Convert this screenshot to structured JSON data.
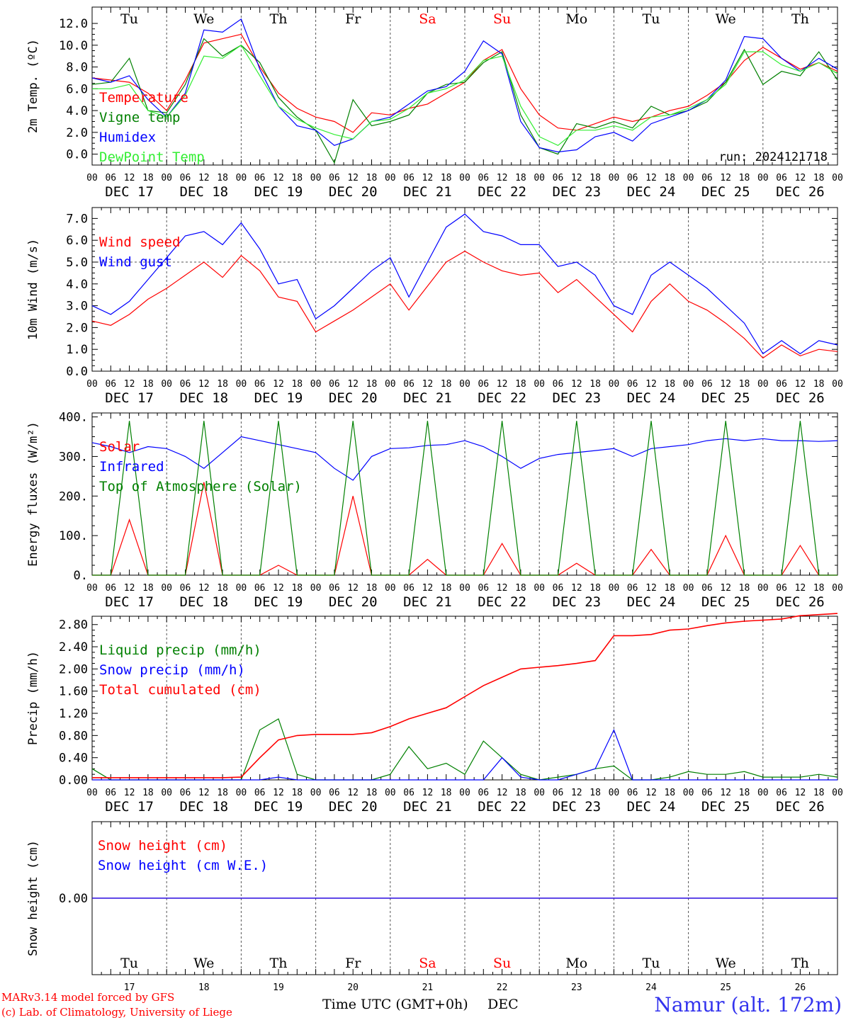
{
  "footer": {
    "model_line": "MARv3.14 model forced by GFS",
    "credit_line": "(c) Lab. of Climatology, University of Liege",
    "xlabel": "Time UTC (GMT+0h)",
    "month": "DEC",
    "station": "Namur (alt. 172m)"
  },
  "day_abbrevs": [
    "Tu",
    "We",
    "Th",
    "Fr",
    "Sa",
    "Su",
    "Mo",
    "Tu",
    "We",
    "Th"
  ],
  "weekend_indices": [
    4,
    5
  ],
  "day_numbers": [
    "17",
    "18",
    "19",
    "20",
    "21",
    "22",
    "23",
    "24",
    "25",
    "26"
  ],
  "date_labels": [
    "DEC 17",
    "DEC 18",
    "DEC 19",
    "DEC 20",
    "DEC 21",
    "DEC 22",
    "DEC 23",
    "DEC 24",
    "DEC 25",
    "DEC 26"
  ],
  "hour_ticks": [
    "00",
    "06",
    "12",
    "18"
  ],
  "final_hour": "00",
  "colors": {
    "red": "#ff0000",
    "green": "#008000",
    "blue": "#0000ff",
    "light_green": "#33ee33"
  },
  "chart_data": [
    {
      "type": "line",
      "ylabel": "2m Temp. (ºC)",
      "run_label": "run: 2024121718",
      "ylim": [
        -1.0,
        13.5
      ],
      "yticks": [
        "0.0",
        "2.0",
        "4.0",
        "6.0",
        "8.0",
        "10.0",
        "12.0"
      ],
      "ytick_values": [
        0,
        2,
        4,
        6,
        8,
        10,
        12
      ],
      "x_hours": [
        0,
        6,
        12,
        18,
        24,
        30,
        36,
        42,
        48,
        54,
        60,
        66,
        72,
        78,
        84,
        90,
        96,
        102,
        108,
        114,
        120,
        126,
        132,
        138,
        144,
        150,
        156,
        162,
        168,
        174,
        180,
        186,
        192,
        198,
        204,
        210,
        216,
        222,
        228,
        234,
        240
      ],
      "series": [
        {
          "name": "Temperature",
          "color": "#ff0000",
          "values": [
            7.0,
            6.8,
            6.6,
            5.6,
            4.0,
            6.8,
            10.2,
            10.6,
            11.0,
            8.0,
            5.6,
            4.2,
            3.4,
            3.0,
            2.0,
            3.8,
            3.6,
            4.2,
            4.6,
            5.6,
            6.6,
            8.6,
            9.6,
            6.0,
            3.6,
            2.4,
            2.2,
            2.8,
            3.4,
            3.0,
            3.4,
            4.0,
            4.4,
            5.4,
            6.6,
            8.6,
            9.8,
            8.8,
            7.8,
            8.4,
            7.6
          ]
        },
        {
          "name": "Vigne temp",
          "color": "#008000",
          "values": [
            6.4,
            6.6,
            8.8,
            4.0,
            3.8,
            6.4,
            10.6,
            9.0,
            10.0,
            8.4,
            5.2,
            3.4,
            2.2,
            -0.8,
            5.0,
            2.6,
            3.0,
            3.6,
            5.6,
            6.4,
            6.6,
            8.4,
            9.4,
            3.6,
            0.6,
            0.0,
            2.8,
            2.4,
            3.0,
            2.4,
            4.4,
            3.6,
            4.0,
            4.8,
            6.6,
            9.6,
            6.4,
            7.6,
            7.2,
            9.4,
            6.8
          ]
        },
        {
          "name": "Humidex",
          "color": "#0000ff",
          "values": [
            7.0,
            6.6,
            7.2,
            5.0,
            3.4,
            5.6,
            11.4,
            11.2,
            12.4,
            7.8,
            4.4,
            2.6,
            2.2,
            0.8,
            1.4,
            3.0,
            3.4,
            4.6,
            5.8,
            6.2,
            7.6,
            10.4,
            9.2,
            3.0,
            0.6,
            0.2,
            0.4,
            1.6,
            2.0,
            1.2,
            2.8,
            3.4,
            4.0,
            5.0,
            6.8,
            10.8,
            10.6,
            8.8,
            7.6,
            8.8,
            7.8
          ]
        },
        {
          "name": "DewPoint Temp",
          "color": "#33ee33",
          "values": [
            6.0,
            6.0,
            6.4,
            4.0,
            3.4,
            5.4,
            9.0,
            8.8,
            10.0,
            7.2,
            4.4,
            3.2,
            2.4,
            1.8,
            1.4,
            3.0,
            3.2,
            4.2,
            5.6,
            6.0,
            6.8,
            8.6,
            9.0,
            4.4,
            1.6,
            0.8,
            2.2,
            2.2,
            2.6,
            2.2,
            3.4,
            3.6,
            4.2,
            5.0,
            6.4,
            9.4,
            9.4,
            8.2,
            7.6,
            8.4,
            7.4
          ]
        }
      ]
    },
    {
      "type": "line",
      "ylabel": "10m Wind (m/s)",
      "ylim": [
        0,
        7.5
      ],
      "yticks": [
        "0.0",
        "1.0",
        "2.0",
        "3.0",
        "4.0",
        "5.0",
        "6.0",
        "7.0"
      ],
      "ytick_values": [
        0,
        1,
        2,
        3,
        4,
        5,
        6,
        7
      ],
      "reference_line": 5.0,
      "x_hours": [
        0,
        6,
        12,
        18,
        24,
        30,
        36,
        42,
        48,
        54,
        60,
        66,
        72,
        78,
        84,
        90,
        96,
        102,
        108,
        114,
        120,
        126,
        132,
        138,
        144,
        150,
        156,
        162,
        168,
        174,
        180,
        186,
        192,
        198,
        204,
        210,
        216,
        222,
        228,
        234,
        240
      ],
      "series": [
        {
          "name": "Wind speed",
          "color": "#ff0000",
          "values": [
            2.3,
            2.1,
            2.6,
            3.3,
            3.8,
            4.4,
            5.0,
            4.3,
            5.3,
            4.6,
            3.4,
            3.2,
            1.8,
            2.3,
            2.8,
            3.4,
            4.0,
            2.8,
            3.9,
            5.0,
            5.5,
            5.0,
            4.6,
            4.4,
            4.5,
            3.6,
            4.2,
            3.4,
            2.6,
            1.8,
            3.2,
            4.0,
            3.2,
            2.8,
            2.2,
            1.5,
            0.6,
            1.2,
            0.7,
            1.0,
            0.9
          ]
        },
        {
          "name": "Wind gust",
          "color": "#0000ff",
          "values": [
            3.0,
            2.6,
            3.2,
            4.2,
            5.2,
            6.2,
            6.4,
            5.8,
            6.8,
            5.6,
            4.0,
            4.2,
            2.4,
            3.0,
            3.8,
            4.6,
            5.2,
            3.4,
            5.0,
            6.6,
            7.2,
            6.4,
            6.2,
            5.8,
            5.8,
            4.8,
            5.0,
            4.4,
            3.0,
            2.6,
            4.4,
            5.0,
            4.4,
            3.8,
            3.0,
            2.2,
            0.8,
            1.4,
            0.8,
            1.4,
            1.2
          ]
        }
      ]
    },
    {
      "type": "line",
      "ylabel": "Energy fluxes (W/m²)",
      "ylim": [
        0,
        410
      ],
      "yticks": [
        "0.",
        "100.",
        "200.",
        "300.",
        "400."
      ],
      "ytick_values": [
        0,
        100,
        200,
        300,
        400
      ],
      "x_hours": [
        0,
        6,
        12,
        18,
        24,
        30,
        36,
        42,
        48,
        54,
        60,
        66,
        72,
        78,
        84,
        90,
        96,
        102,
        108,
        114,
        120,
        126,
        132,
        138,
        144,
        150,
        156,
        162,
        168,
        174,
        180,
        186,
        192,
        198,
        204,
        210,
        216,
        222,
        228,
        234,
        240
      ],
      "series": [
        {
          "name": "Solar",
          "color": "#ff0000",
          "values": [
            0,
            0,
            140,
            0,
            0,
            0,
            235,
            0,
            0,
            0,
            25,
            0,
            0,
            0,
            200,
            0,
            0,
            0,
            40,
            0,
            0,
            0,
            80,
            0,
            0,
            0,
            30,
            0,
            0,
            0,
            65,
            0,
            0,
            0,
            100,
            0,
            0,
            0,
            75,
            0,
            0
          ]
        },
        {
          "name": "Infrared",
          "color": "#0000ff",
          "values": [
            335,
            325,
            310,
            325,
            320,
            300,
            270,
            310,
            350,
            340,
            330,
            320,
            310,
            270,
            240,
            300,
            320,
            322,
            328,
            330,
            340,
            325,
            300,
            270,
            295,
            305,
            310,
            315,
            320,
            300,
            320,
            325,
            330,
            340,
            345,
            340,
            345,
            340,
            340,
            338,
            340
          ]
        },
        {
          "name": "Top of Atmosphere (Solar)",
          "color": "#008000",
          "values": [
            0,
            0,
            390,
            0,
            0,
            0,
            390,
            0,
            0,
            0,
            390,
            0,
            0,
            0,
            390,
            0,
            0,
            0,
            390,
            0,
            0,
            0,
            390,
            0,
            0,
            0,
            390,
            0,
            0,
            0,
            390,
            0,
            0,
            0,
            390,
            0,
            0,
            0,
            390,
            0,
            0
          ]
        }
      ]
    },
    {
      "type": "line",
      "ylabel": "Precip (mm/h)",
      "ylim": [
        0,
        2.95
      ],
      "yticks": [
        "0.00",
        "0.40",
        "0.80",
        "1.20",
        "1.60",
        "2.00",
        "2.40",
        "2.80"
      ],
      "ytick_values": [
        0,
        0.4,
        0.8,
        1.2,
        1.6,
        2.0,
        2.4,
        2.8
      ],
      "x_hours": [
        0,
        6,
        12,
        18,
        24,
        30,
        36,
        42,
        48,
        54,
        60,
        66,
        72,
        78,
        84,
        90,
        96,
        102,
        108,
        114,
        120,
        126,
        132,
        138,
        144,
        150,
        156,
        162,
        168,
        174,
        180,
        186,
        192,
        198,
        204,
        210,
        216,
        222,
        228,
        234,
        240
      ],
      "series": [
        {
          "name": "Liquid precip (mm/h)",
          "color": "#008000",
          "values": [
            0.2,
            0,
            0,
            0,
            0,
            0,
            0,
            0,
            0,
            0.9,
            1.1,
            0.1,
            0,
            0,
            0,
            0,
            0.1,
            0.6,
            0.2,
            0.3,
            0.1,
            0.7,
            0.4,
            0.1,
            0,
            0.05,
            0.1,
            0.2,
            0.25,
            0,
            0,
            0.05,
            0.15,
            0.1,
            0.1,
            0.15,
            0.05,
            0.05,
            0.05,
            0.1,
            0.05
          ]
        },
        {
          "name": "Snow precip (mm/h)",
          "color": "#0000ff",
          "values": [
            0,
            0,
            0,
            0,
            0,
            0,
            0,
            0,
            0,
            0,
            0.05,
            0,
            0,
            0,
            0,
            0,
            0,
            0,
            0,
            0,
            0,
            0,
            0.4,
            0.05,
            0,
            0,
            0.1,
            0.2,
            0.9,
            0,
            0,
            0,
            0,
            0,
            0,
            0,
            0,
            0,
            0,
            0,
            0
          ]
        },
        {
          "name": "Total cumulated (cm)",
          "color": "#ff0000",
          "values": [
            0.04,
            0.04,
            0.04,
            0.04,
            0.04,
            0.04,
            0.04,
            0.04,
            0.05,
            0.4,
            0.72,
            0.8,
            0.82,
            0.82,
            0.82,
            0.85,
            0.96,
            1.1,
            1.2,
            1.3,
            1.5,
            1.7,
            1.85,
            2.0,
            2.03,
            2.06,
            2.1,
            2.15,
            2.6,
            2.6,
            2.62,
            2.7,
            2.72,
            2.78,
            2.83,
            2.86,
            2.88,
            2.9,
            2.96,
            2.98,
            3.0
          ]
        }
      ]
    },
    {
      "type": "line",
      "ylabel": "Snow height (cm)",
      "ylim": [
        -1,
        1
      ],
      "yticks": [
        "0.00"
      ],
      "ytick_values": [
        0
      ],
      "x_hours": [
        0,
        240
      ],
      "series": [
        {
          "name": "Snow height (cm)",
          "color": "#ff0000",
          "values": [
            0,
            0
          ]
        },
        {
          "name": "Snow height (cm W.E.)",
          "color": "#0000ff",
          "values": [
            0,
            0
          ]
        }
      ]
    }
  ]
}
